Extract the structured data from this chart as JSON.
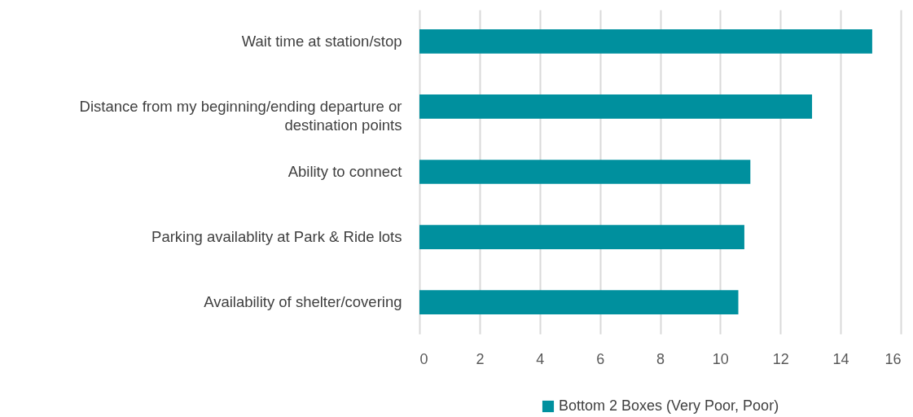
{
  "chart_data": {
    "type": "bar",
    "orientation": "horizontal",
    "categories": [
      "Wait time at station/stop",
      "Distance from my beginning/ending departure or destination points",
      "Ability to connect",
      "Parking availablity at Park & Ride lots",
      "Availability of shelter/covering"
    ],
    "series": [
      {
        "name": "Bottom 2 Boxes (Very Poor, Poor)",
        "color": "#00909e",
        "values": [
          15.05,
          13.05,
          11.0,
          10.8,
          10.6
        ]
      }
    ],
    "xlim": [
      0,
      16
    ],
    "xticks": [
      0,
      2,
      4,
      6,
      8,
      10,
      12,
      14,
      16
    ],
    "grid": "x",
    "legend": "bottom"
  }
}
